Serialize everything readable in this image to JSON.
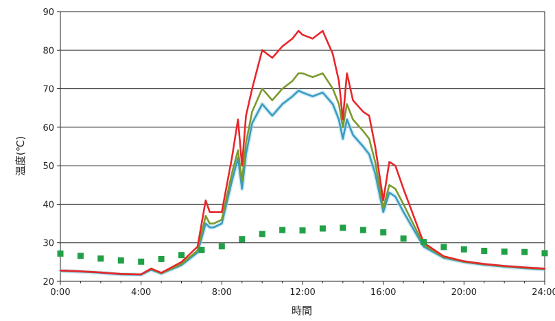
{
  "chart_data": {
    "type": "line",
    "xlabel": "時間",
    "ylabel": "温度(℃)",
    "ylim": [
      20,
      90
    ],
    "xlim": [
      0,
      24
    ],
    "grid": "horizontal",
    "y_ticks": [
      "20",
      "30",
      "40",
      "50",
      "60",
      "70",
      "80",
      "90"
    ],
    "x_ticks": [
      "0:00",
      "4:00",
      "8:00",
      "12:00",
      "16:00",
      "20:00",
      "24:00"
    ],
    "series": [
      {
        "color": "#e8262b",
        "x": [
          0,
          1,
          2,
          3,
          4,
          4.5,
          5,
          6,
          6.8,
          7.2,
          7.4,
          7.6,
          8,
          8.5,
          8.8,
          9,
          9.2,
          9.5,
          10,
          10.5,
          11,
          11.5,
          11.8,
          12,
          12.5,
          13,
          13.5,
          13.8,
          14,
          14.2,
          14.5,
          15,
          15.3,
          15.6,
          16,
          16.3,
          16.6,
          17,
          18,
          19,
          20,
          21,
          22,
          23,
          24
        ],
        "y": [
          22.8,
          22.6,
          22.3,
          21.9,
          21.8,
          23.3,
          22.2,
          25,
          29,
          41,
          38,
          38,
          38,
          52,
          62,
          50,
          63,
          70,
          80,
          78,
          81,
          83,
          85,
          84,
          83,
          85,
          79,
          72,
          62,
          74,
          67,
          64,
          63,
          55,
          41,
          51,
          50,
          44,
          30,
          26.5,
          25.2,
          24.5,
          24,
          23.6,
          23.3
        ]
      },
      {
        "color": "#7a9a2c",
        "x": [
          0,
          1,
          2,
          3,
          4,
          4.5,
          5,
          6,
          6.8,
          7.2,
          7.4,
          7.6,
          8,
          8.5,
          8.8,
          9,
          9.2,
          9.5,
          10,
          10.5,
          11,
          11.5,
          11.8,
          12,
          12.5,
          13,
          13.5,
          13.8,
          14,
          14.2,
          14.5,
          15,
          15.3,
          15.6,
          16,
          16.3,
          16.6,
          17,
          18,
          19,
          20,
          21,
          22,
          23,
          24
        ],
        "y": [
          22.8,
          22.6,
          22.3,
          21.9,
          21.8,
          23.2,
          22.1,
          24.5,
          28,
          37,
          35,
          35,
          36,
          48,
          54,
          46,
          56,
          64,
          70,
          67,
          70,
          72,
          74,
          74,
          73,
          74,
          70,
          66,
          60,
          66,
          62,
          59,
          57,
          51,
          39,
          45,
          44,
          40,
          29.5,
          26.3,
          25.1,
          24.4,
          23.9,
          23.5,
          23.2
        ]
      },
      {
        "color": "#3a9cc2",
        "x": [
          0,
          1,
          2,
          3,
          4,
          4.5,
          5,
          6,
          6.8,
          7.2,
          7.4,
          7.6,
          8,
          8.5,
          8.8,
          9,
          9.2,
          9.5,
          10,
          10.5,
          11,
          11.5,
          11.8,
          12,
          12.5,
          13,
          13.5,
          13.8,
          14,
          14.2,
          14.5,
          15,
          15.3,
          15.6,
          16,
          16.3,
          16.6,
          17,
          18,
          19,
          20,
          21,
          22,
          23,
          24
        ],
        "y": [
          22.7,
          22.5,
          22.2,
          21.8,
          21.7,
          23,
          22,
          24.2,
          27.5,
          35,
          34,
          34,
          35,
          46,
          52,
          44,
          53,
          61,
          66,
          63,
          66,
          68,
          69.5,
          69,
          68,
          69,
          66,
          62,
          57,
          62,
          58,
          55,
          53,
          48,
          38,
          43,
          42,
          38,
          29,
          26.1,
          25,
          24.3,
          23.8,
          23.4,
          23.1
        ]
      },
      {
        "color": "#22a047",
        "marker": "square",
        "x": [
          0,
          1,
          2,
          3,
          4,
          5,
          6,
          7,
          8,
          9,
          10,
          11,
          12,
          13,
          14,
          15,
          16,
          17,
          18,
          19,
          20,
          21,
          22,
          23,
          24
        ],
        "y": [
          27.2,
          26.6,
          25.9,
          25.4,
          25.1,
          25.8,
          26.8,
          28.1,
          29.1,
          30.9,
          32.3,
          33.3,
          33.2,
          33.7,
          33.9,
          33.3,
          32.7,
          31.1,
          30.2,
          28.9,
          28.3,
          27.9,
          27.7,
          27.6,
          27.3
        ]
      }
    ]
  }
}
